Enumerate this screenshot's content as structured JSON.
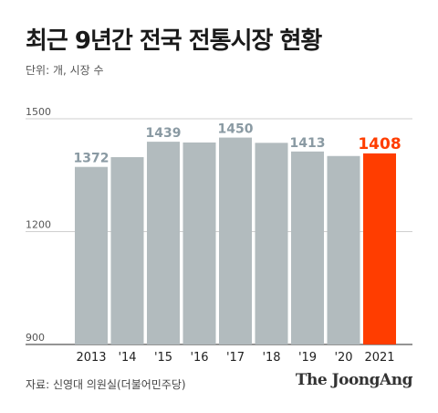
{
  "title": "최근 9년간 전국 전통시장 현황",
  "unit_label": "단위: 개, 시장 수",
  "source": "자료: 신영대 의원실(더불어민주당)",
  "brand": "The JoongAng",
  "colors": {
    "bar": "#b2bbbe",
    "highlight": "#ff3d00",
    "label": "#8a9aa3",
    "grid": "#cfcfcf",
    "axis": "#555555"
  },
  "chart_data": {
    "type": "bar",
    "categories": [
      "2013",
      "'14",
      "'15",
      "'16",
      "'17",
      "'18",
      "'19",
      "'20",
      "2021"
    ],
    "values": [
      1372,
      1398,
      1439,
      1437,
      1450,
      1436,
      1413,
      1401,
      1408
    ],
    "data_labels": [
      "1372",
      "",
      "1439",
      "",
      "1450",
      "",
      "1413",
      "",
      "1408"
    ],
    "highlight_index": 8,
    "yticks": [
      "1500",
      "1200",
      "900"
    ],
    "ytick_values": [
      1500,
      1200,
      900
    ],
    "ylim": [
      900,
      1500
    ],
    "grid": true
  }
}
